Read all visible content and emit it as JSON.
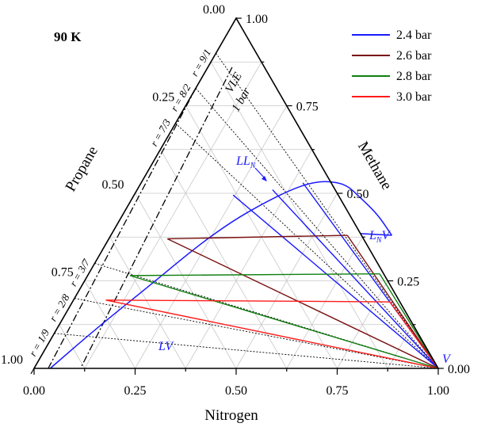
{
  "chart_data": {
    "type": "ternary",
    "title": "90 K",
    "axes": {
      "bottom": {
        "label": "Nitrogen",
        "ticks": [
          "0.00",
          "0.25",
          "0.50",
          "0.75",
          "1.00"
        ]
      },
      "right": {
        "label": "Methane",
        "ticks": [
          "0.00",
          "0.25",
          "0.50",
          "0.75",
          "1.00"
        ]
      },
      "left": {
        "label": "Propane",
        "ticks": [
          "0.00",
          "0.25",
          "0.50",
          "0.75",
          "1.00"
        ]
      }
    },
    "legend": {
      "position": "top-right",
      "entries": [
        {
          "name": "2.4 bar",
          "color": "#1a1aff"
        },
        {
          "name": "2.6 bar",
          "color": "#7a1010"
        },
        {
          "name": "2.8 bar",
          "color": "#108010"
        },
        {
          "name": "3.0 bar",
          "color": "#ff1a1a"
        }
      ]
    },
    "ratio_lines": [
      {
        "label": "r = 9/1",
        "methane": 0.9
      },
      {
        "label": "r = 8/2",
        "methane": 0.8
      },
      {
        "label": "r = 7/3",
        "methane": 0.7
      },
      {
        "label": "r = 3/7",
        "methane": 0.3
      },
      {
        "label": "r = 2/8",
        "methane": 0.2
      },
      {
        "label": "r = 1/9",
        "methane": 0.1
      }
    ],
    "vle_line": {
      "label_top": "VLE",
      "label_bottom": "1 bar",
      "points": [
        {
          "n": 0.0,
          "m": 0.8
        },
        {
          "n": 0.035,
          "m": 0.0
        }
      ]
    },
    "annotations": {
      "ll": "LL",
      "ll_sub": "N",
      "lv": "LV",
      "lnv": "L",
      "lnv_sub": "N",
      "lnv_tail": "V",
      "v": "V"
    },
    "series": [
      {
        "name": "2.4 bar",
        "color": "#1a1aff",
        "envelope": [
          {
            "n": 0.04,
            "m": 0.0
          },
          {
            "n": 0.1,
            "m": 0.12
          },
          {
            "n": 0.17,
            "m": 0.24
          },
          {
            "n": 0.23,
            "m": 0.35
          },
          {
            "n": 0.28,
            "m": 0.42
          },
          {
            "n": 0.33,
            "m": 0.47
          },
          {
            "n": 0.38,
            "m": 0.51
          },
          {
            "n": 0.42,
            "m": 0.53
          },
          {
            "n": 0.46,
            "m": 0.535
          },
          {
            "n": 0.51,
            "m": 0.525
          },
          {
            "n": 0.56,
            "m": 0.49
          },
          {
            "n": 0.63,
            "m": 0.44
          },
          {
            "n": 0.695,
            "m": 0.38
          }
        ],
        "tie_lines": [
          [
            {
              "n": 0.245,
              "m": 0.495
            },
            {
              "n": 1.0,
              "m": 0.0
            }
          ],
          [
            {
              "n": 0.335,
              "m": 0.51
            },
            {
              "n": 1.0,
              "m": 0.0
            }
          ],
          [
            {
              "n": 0.4,
              "m": 0.53
            },
            {
              "n": 1.0,
              "m": 0.0
            }
          ]
        ]
      },
      {
        "name": "2.6 bar",
        "color": "#7a1010",
        "tie_lines": [
          [
            {
              "n": 0.145,
              "m": 0.37
            },
            {
              "n": 0.585,
              "m": 0.38
            }
          ],
          [
            {
              "n": 0.585,
              "m": 0.38
            },
            {
              "n": 1.0,
              "m": 0.0
            }
          ],
          [
            {
              "n": 0.145,
              "m": 0.37
            },
            {
              "n": 1.0,
              "m": 0.0
            }
          ]
        ]
      },
      {
        "name": "2.8 bar",
        "color": "#108010",
        "tie_lines": [
          [
            {
              "n": 0.105,
              "m": 0.265
            },
            {
              "n": 0.72,
              "m": 0.27
            }
          ],
          [
            {
              "n": 0.72,
              "m": 0.27
            },
            {
              "n": 1.0,
              "m": 0.0
            }
          ],
          [
            {
              "n": 0.105,
              "m": 0.265
            },
            {
              "n": 1.0,
              "m": 0.0
            }
          ]
        ]
      },
      {
        "name": "3.0 bar",
        "color": "#ff1a1a",
        "tie_lines": [
          [
            {
              "n": 0.08,
              "m": 0.195
            },
            {
              "n": 0.785,
              "m": 0.19
            }
          ],
          [
            {
              "n": 0.785,
              "m": 0.19
            },
            {
              "n": 1.0,
              "m": 0.0
            }
          ],
          [
            {
              "n": 0.08,
              "m": 0.195
            },
            {
              "n": 1.0,
              "m": 0.0
            }
          ]
        ]
      }
    ]
  }
}
